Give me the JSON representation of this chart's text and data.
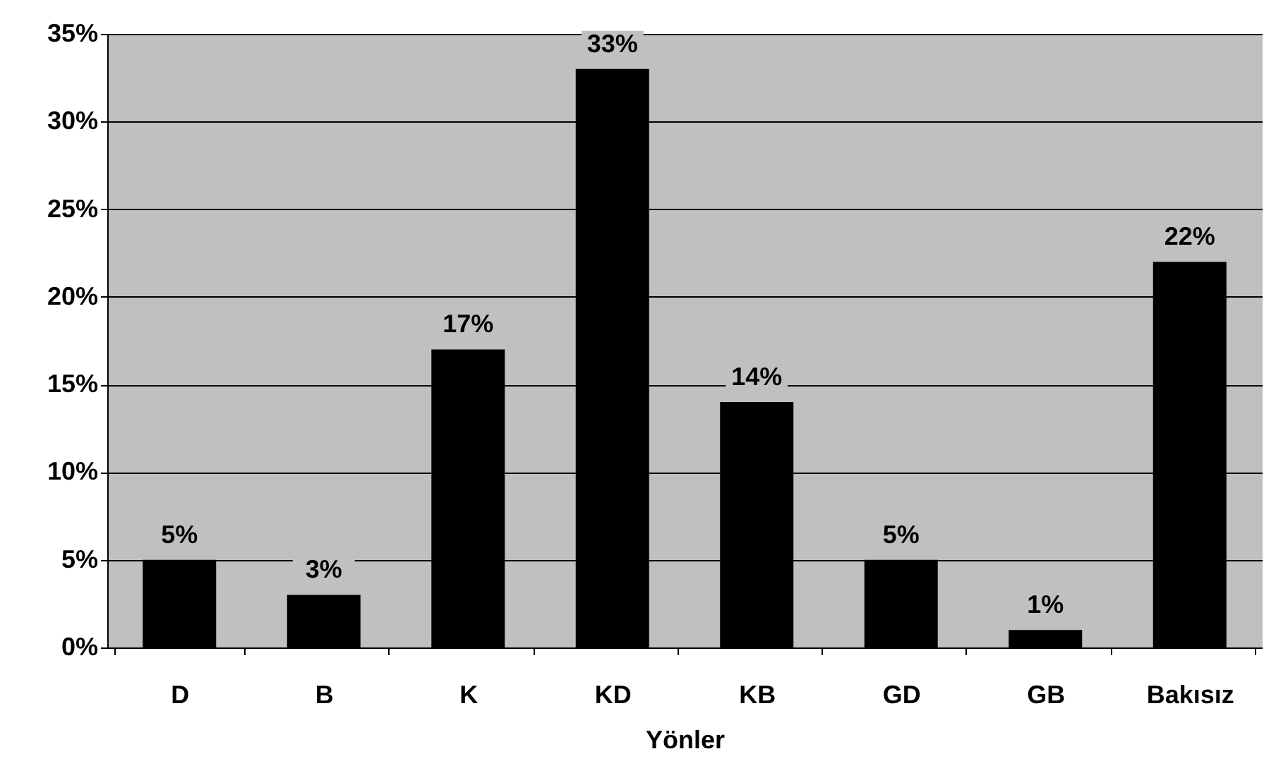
{
  "chart_data": {
    "type": "bar",
    "xlabel": "Yönler",
    "categories": [
      "D",
      "B",
      "K",
      "KD",
      "KB",
      "GD",
      "GB",
      "Bakısız"
    ],
    "values": [
      5,
      3,
      17,
      33,
      14,
      5,
      1,
      22
    ],
    "value_labels": [
      "5%",
      "3%",
      "17%",
      "33%",
      "14%",
      "5%",
      "1%",
      "22%"
    ],
    "color": "#000000",
    "ylim": [
      0,
      35
    ],
    "yticks": [
      {
        "value": 0,
        "label": "0%"
      },
      {
        "value": 5,
        "label": "5%"
      },
      {
        "value": 10,
        "label": "10%"
      },
      {
        "value": 15,
        "label": "15%"
      },
      {
        "value": 20,
        "label": "20%"
      },
      {
        "value": 25,
        "label": "25%"
      },
      {
        "value": 30,
        "label": "30%"
      },
      {
        "value": 35,
        "label": "35%"
      }
    ],
    "grid": "y"
  }
}
